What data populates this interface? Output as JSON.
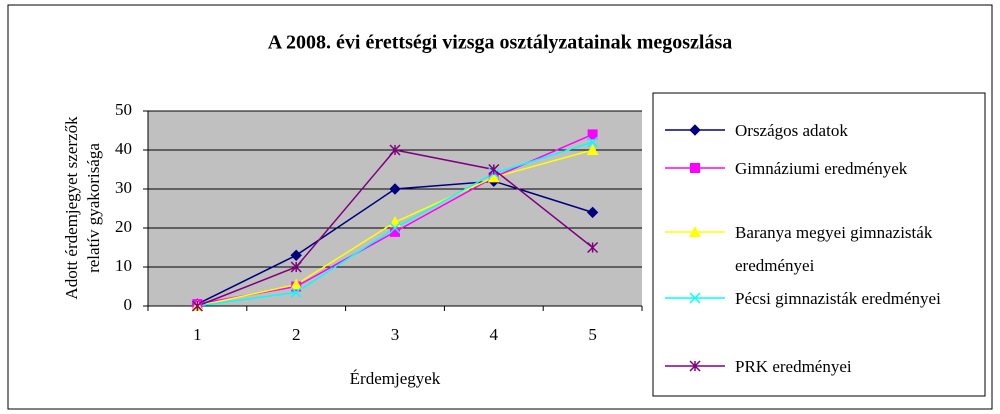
{
  "chart_data": {
    "type": "line",
    "title": "A 2008. évi érettségi vizsga osztályzatainak megoszlása",
    "x_label": "Érdemjegyek",
    "y_label": "Adott érdemjegyet szerzők relatív gyakorisága",
    "categories": [
      "1",
      "2",
      "3",
      "4",
      "5"
    ],
    "ylim": [
      0,
      50
    ],
    "yticks": [
      0,
      10,
      20,
      30,
      40,
      50
    ],
    "grid": true,
    "legend": "right",
    "series": [
      {
        "name": "Országos adatok",
        "color": "#000080",
        "marker": "diamond",
        "values": [
          0.5,
          13,
          30,
          32,
          24
        ]
      },
      {
        "name": "Gimnáziumi eredmények",
        "color": "#FF00FF",
        "marker": "square",
        "values": [
          0.5,
          5,
          19,
          33,
          44
        ]
      },
      {
        "name": "Baranya megyei gimnazisták eredményei",
        "color": "#FFFF00",
        "marker": "triangle",
        "values": [
          0,
          5.5,
          21.5,
          33,
          40
        ]
      },
      {
        "name": "Pécsi gimnazisták eredményei",
        "color": "#00FFFF",
        "marker": "x",
        "values": [
          0,
          3.5,
          20,
          34,
          42
        ]
      },
      {
        "name": "PRK eredményei",
        "color": "#800080",
        "marker": "star",
        "values": [
          0,
          10,
          40,
          35,
          15
        ]
      }
    ]
  }
}
